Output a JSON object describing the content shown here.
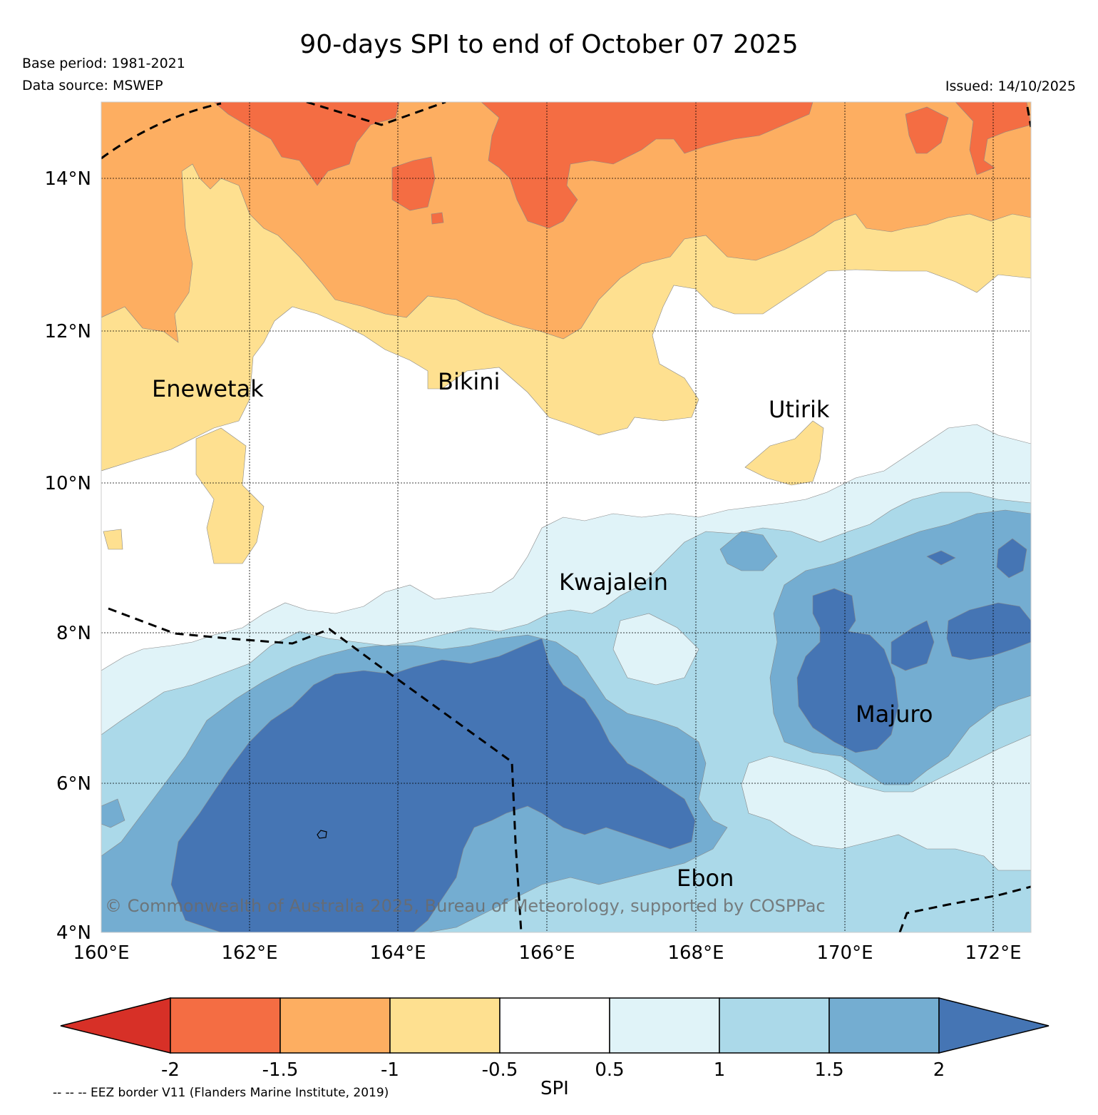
{
  "header": {
    "title": "90-days SPI to end of October 07 2025",
    "base_period": "Base period: 1981-2021",
    "data_source": "Data source: MSWEP",
    "issued": "Issued: 14/10/2025"
  },
  "map": {
    "lat_ticks": [
      "4°N",
      "6°N",
      "8°N",
      "10°N",
      "12°N",
      "14°N"
    ],
    "lon_ticks": [
      "160°E",
      "162°E",
      "164°E",
      "166°E",
      "168°E",
      "170°E",
      "172°E"
    ],
    "places": {
      "enewetak": "Enewetak",
      "bikini": "Bikini",
      "utirik": "Utirik",
      "kwajalein": "Kwajalein",
      "majuro": "Majuro",
      "ebon": "Ebon"
    },
    "copyright": "© Commonwealth of Australia 2025, Bureau of Meteorology, supported by COSPPac"
  },
  "legend": {
    "label": "SPI",
    "ticks": [
      "-2",
      "-1.5",
      "-1",
      "-0.5",
      "0.5",
      "1",
      "1.5",
      "2"
    ],
    "colors": {
      "lt_m2": "#d73027",
      "m2_m15": "#f46d43",
      "m15_m1": "#fdae61",
      "m1_m05": "#fee090",
      "m05_05": "#ffffff",
      "p05_1": "#e0f3f8",
      "p1_15": "#abd9e9",
      "p15_2": "#74add1",
      "gt_2": "#4575b4"
    },
    "eez_note": "-- -- -- EEZ border V11 (Flanders Marine Institute, 2019)"
  }
}
